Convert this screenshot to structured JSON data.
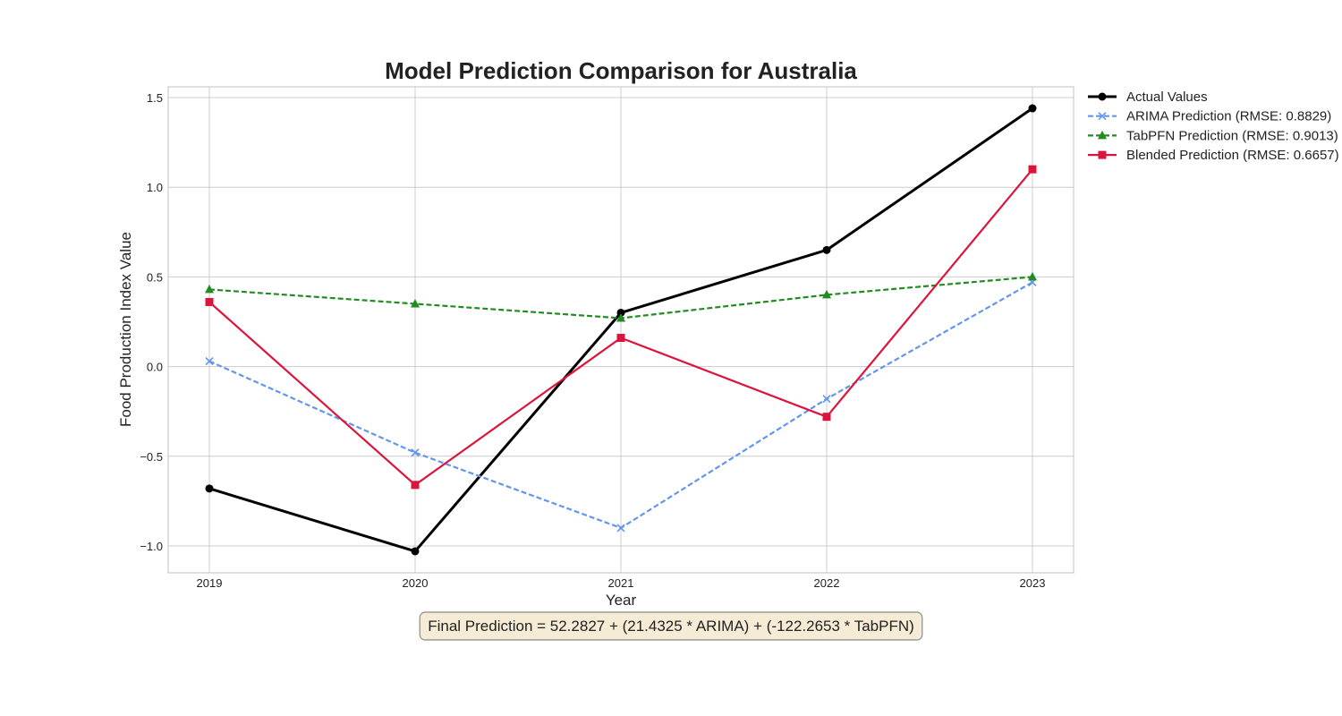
{
  "chart_data": {
    "type": "line",
    "title": "Model Prediction Comparison for Australia",
    "xlabel": "Year",
    "ylabel": "Food Production Index Value",
    "x": [
      2019,
      2020,
      2021,
      2022,
      2023
    ],
    "x_tick_labels": [
      "2019",
      "2020",
      "2021",
      "2022",
      "2023"
    ],
    "xlim": [
      2018.8,
      2023.2
    ],
    "ylim": [
      -1.15,
      1.56
    ],
    "y_ticks": [
      1.5,
      1.0,
      0.5,
      0.0,
      -0.5,
      -1.0
    ],
    "y_tick_labels": [
      "1.5",
      "1.0",
      "0.5",
      "0.0",
      "−0.5",
      "−1.0"
    ],
    "grid": true,
    "legend_position": "outside-top-right",
    "series": [
      {
        "name": "Actual Values",
        "values": [
          -0.68,
          -1.03,
          0.3,
          0.65,
          1.44
        ],
        "color": "#000000",
        "line_style": "solid",
        "marker": "circle"
      },
      {
        "name": "ARIMA Prediction (RMSE: 0.8829)",
        "values": [
          0.03,
          -0.48,
          -0.9,
          -0.18,
          0.47
        ],
        "color": "#6495ed",
        "line_style": "dashed",
        "marker": "x"
      },
      {
        "name": "TabPFN Prediction (RMSE: 0.9013)",
        "values": [
          0.43,
          0.35,
          0.27,
          0.4,
          0.5
        ],
        "color": "#228b22",
        "line_style": "dashed",
        "marker": "triangle"
      },
      {
        "name": "Blended Prediction (RMSE: 0.6657)",
        "values": [
          0.36,
          -0.66,
          0.16,
          -0.28,
          1.1
        ],
        "color": "#dc143c",
        "line_style": "solid",
        "marker": "square"
      }
    ],
    "annotation": "Final Prediction = 52.2827 + (21.4325 * ARIMA) + (-122.2653 * TabPFN)"
  }
}
